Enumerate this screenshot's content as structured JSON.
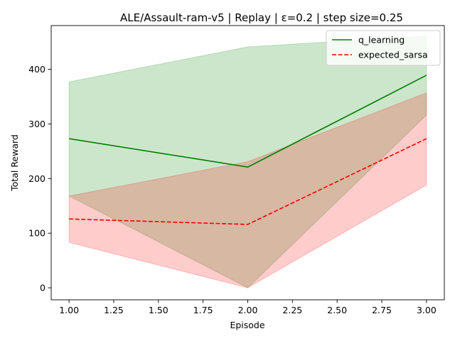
{
  "chart_data": {
    "type": "line",
    "title": "ALE/Assault-ram-v5 | Replay | ε=0.2 | step size=0.25",
    "xlabel": "Episode",
    "ylabel": "Total Reward",
    "xlim": [
      0.9,
      3.1
    ],
    "ylim": [
      -22,
      480
    ],
    "xticks": [
      1.0,
      1.25,
      1.5,
      1.75,
      2.0,
      2.25,
      2.5,
      2.75,
      3.0
    ],
    "xtick_labels": [
      "1.00",
      "1.25",
      "1.50",
      "1.75",
      "2.00",
      "2.25",
      "2.50",
      "2.75",
      "3.00"
    ],
    "yticks": [
      0,
      100,
      200,
      300,
      400
    ],
    "ytick_labels": [
      "0",
      "100",
      "200",
      "300",
      "400"
    ],
    "grid": false,
    "legend_position": "top-right",
    "x": [
      1.0,
      2.0,
      3.0
    ],
    "series": [
      {
        "name": "q_learning",
        "values": [
          273,
          221,
          389
        ],
        "lower": [
          168,
          0,
          316
        ],
        "upper": [
          377,
          441,
          461
        ],
        "color": "#008000",
        "fill_color": "#008000",
        "line_style": "solid"
      },
      {
        "name": "expected_sarsa",
        "values": [
          126,
          116,
          273
        ],
        "lower": [
          83,
          0,
          188
        ],
        "upper": [
          168,
          231,
          357
        ],
        "color": "#ff0000",
        "fill_color": "#ff0000",
        "line_style": "dashed"
      }
    ]
  }
}
